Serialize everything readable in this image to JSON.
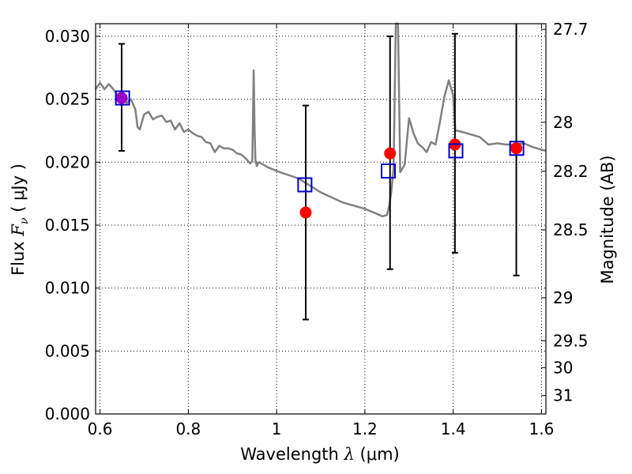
{
  "chart_data": {
    "type": "scatter",
    "title": "",
    "xlabel": "Wavelength",
    "xlabel_symbol": "λ",
    "xlabel_unit": "(μm)",
    "ylabel": "Flux",
    "ylabel_symbol": "F",
    "ylabel_sub": "ν",
    "ylabel_unit": "( μJy )",
    "y2label": "Magnitude (AB)",
    "xlim": [
      0.59,
      1.61
    ],
    "ylim": [
      0.0,
      0.031
    ],
    "grid": true,
    "x_ticks": [
      0.6,
      0.8,
      1.0,
      1.2,
      1.4,
      1.6
    ],
    "x_tick_labels": [
      "0.6",
      "0.8",
      "1",
      "1.2",
      "1.4",
      "1.6"
    ],
    "y_ticks": [
      0.0,
      0.005,
      0.01,
      0.015,
      0.02,
      0.025,
      0.03
    ],
    "y_tick_labels": [
      "0.000",
      "0.005",
      "0.010",
      "0.015",
      "0.020",
      "0.025",
      "0.030"
    ],
    "y2_ticks": [
      {
        "label": "27.7",
        "flux": 0.03055
      },
      {
        "label": "28",
        "flux": 0.02317
      },
      {
        "label": "28.2",
        "flux": 0.01928
      },
      {
        "label": "28.5",
        "flux": 0.01462
      },
      {
        "label": "29",
        "flux": 0.00923
      },
      {
        "label": "29.5",
        "flux": 0.00582
      },
      {
        "label": "30",
        "flux": 0.00368
      },
      {
        "label": "31",
        "flux": 0.00146
      }
    ],
    "series": [
      {
        "marker": "line",
        "color": "#808080",
        "x": [
          0.59,
          0.6,
          0.61,
          0.62,
          0.63,
          0.64,
          0.65,
          0.66,
          0.67,
          0.68,
          0.685,
          0.69,
          0.7,
          0.71,
          0.72,
          0.73,
          0.74,
          0.75,
          0.76,
          0.77,
          0.78,
          0.79,
          0.8,
          0.81,
          0.82,
          0.83,
          0.84,
          0.85,
          0.86,
          0.87,
          0.88,
          0.89,
          0.9,
          0.91,
          0.92,
          0.93,
          0.94,
          0.945,
          0.948,
          0.95,
          0.952,
          0.955,
          0.96,
          0.98,
          1.0,
          1.05,
          1.1,
          1.15,
          1.2,
          1.22,
          1.24,
          1.25,
          1.255,
          1.26,
          1.265,
          1.27,
          1.275,
          1.28,
          1.29,
          1.3,
          1.31,
          1.32,
          1.33,
          1.34,
          1.35,
          1.36,
          1.37,
          1.38,
          1.39,
          1.4,
          1.405,
          1.41,
          1.42,
          1.44,
          1.46,
          1.48,
          1.5,
          1.52,
          1.54,
          1.56,
          1.58,
          1.6,
          1.61
        ],
        "y": [
          0.0258,
          0.0263,
          0.0258,
          0.0262,
          0.0258,
          0.0253,
          0.0255,
          0.0247,
          0.025,
          0.0242,
          0.0228,
          0.0226,
          0.0238,
          0.024,
          0.0234,
          0.0236,
          0.0237,
          0.0232,
          0.0233,
          0.0226,
          0.0231,
          0.0224,
          0.0226,
          0.0223,
          0.0221,
          0.022,
          0.0216,
          0.0215,
          0.0208,
          0.0213,
          0.0211,
          0.0211,
          0.021,
          0.0207,
          0.0206,
          0.0203,
          0.0199,
          0.0201,
          0.0273,
          0.0228,
          0.0202,
          0.0197,
          0.02,
          0.0196,
          0.0193,
          0.0187,
          0.0176,
          0.0168,
          0.0163,
          0.016,
          0.0157,
          0.0158,
          0.0165,
          0.0177,
          0.0195,
          0.031,
          0.031,
          0.0192,
          0.0198,
          0.0235,
          0.0223,
          0.0215,
          0.0212,
          0.0208,
          0.0216,
          0.0214,
          0.0232,
          0.0252,
          0.0265,
          0.0253,
          0.0225,
          0.0225,
          0.0224,
          0.0222,
          0.022,
          0.0214,
          0.0215,
          0.0214,
          0.0214,
          0.0215,
          0.0212,
          0.021,
          0.0209
        ]
      },
      {
        "marker": "circle",
        "color": "#ff0000",
        "x": [
          0.649,
          1.066,
          1.257,
          1.404,
          1.543
        ],
        "y": [
          0.0251,
          0.016,
          0.0207,
          0.0214,
          0.0211
        ],
        "yerr_low": [
          0.0209,
          0.0075,
          0.0115,
          0.0128,
          0.011
        ],
        "yerr_high": [
          0.0294,
          0.0245,
          0.03,
          0.0302,
          0.0315
        ]
      },
      {
        "marker": "square",
        "color": "#0000cc",
        "x": [
          0.651,
          1.064,
          1.253,
          1.406,
          1.544
        ],
        "y": [
          0.0251,
          0.0182,
          0.0193,
          0.0209,
          0.0211
        ]
      }
    ],
    "colors": {
      "errorbar": "#000000",
      "overlap_marker": "#9900cc",
      "grid": "#000000",
      "frame": "#000000"
    }
  }
}
